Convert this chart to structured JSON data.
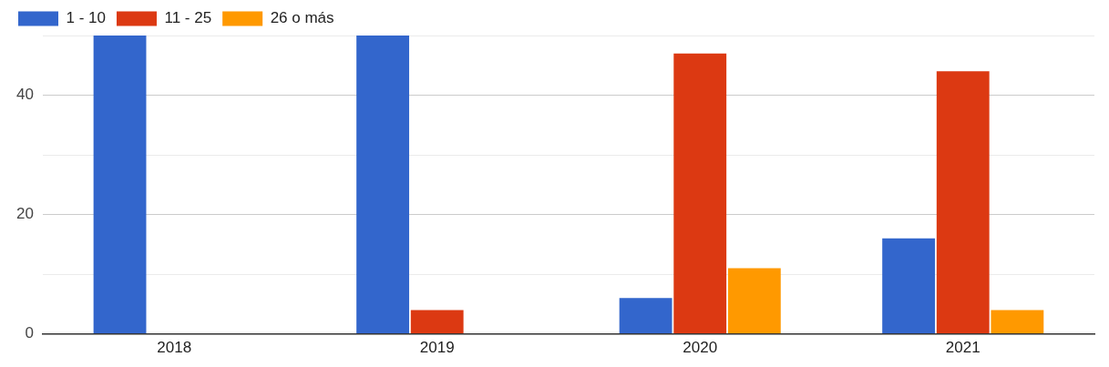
{
  "chart_data": {
    "type": "bar",
    "categories": [
      "2018",
      "2019",
      "2020",
      "2021"
    ],
    "series": [
      {
        "name": "1 - 10",
        "color": "#3366cc",
        "values": [
          50,
          50,
          6,
          16
        ]
      },
      {
        "name": "11 - 25",
        "color": "#dc3912",
        "values": [
          0,
          4,
          47,
          44
        ]
      },
      {
        "name": "26 o más",
        "color": "#ff9900",
        "values": [
          0,
          0,
          11,
          4
        ]
      }
    ],
    "ylim": [
      0,
      50
    ],
    "yticks": [
      0,
      {
        "value": 10,
        "label": null
      },
      20,
      {
        "value": 30,
        "label": null
      },
      40,
      {
        "value": 50,
        "label": null
      }
    ],
    "grid": "y",
    "legend": "top left"
  }
}
